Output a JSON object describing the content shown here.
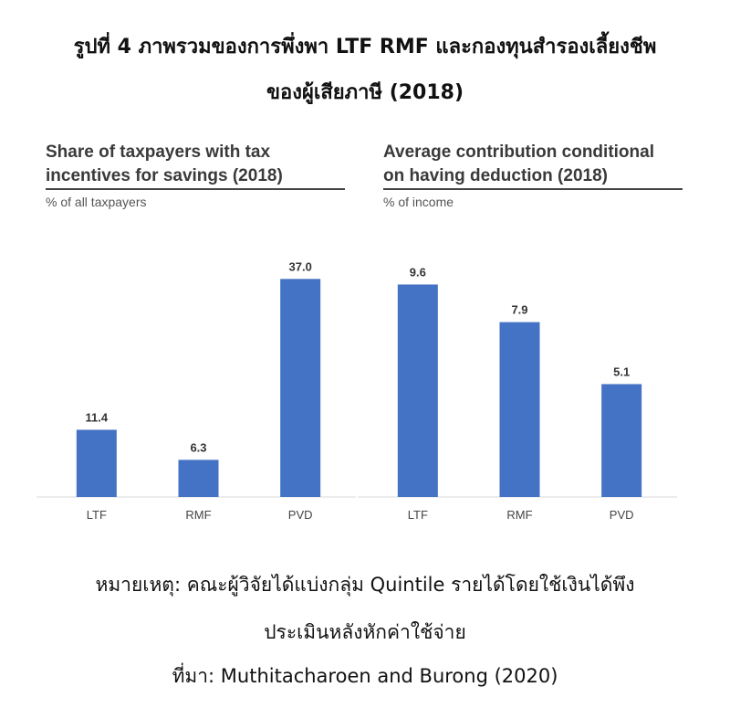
{
  "figure": {
    "title_line1": "รูปที่ 4 ภาพรวมของการพึ่งพา LTF RMF และกองทุนสำรองเลี้ยงชีพ",
    "title_line2": "ของผู้เสียภาษี (2018)",
    "note_line1": "หมายเหตุ: คณะผู้วิจัยได้แบ่งกลุ่ม Quintile รายได้โดยใช้เงินได้พึง",
    "note_line2": "ประเมินหลังหักค่าใช้จ่าย",
    "source": "ที่มา: Muthitacharoen and Burong (2020)"
  },
  "colors": {
    "bar": "#4472c4"
  },
  "chart_data": [
    {
      "type": "bar",
      "title_line1": "Share of taxpayers with tax",
      "title_line2": "incentives for savings (2018)",
      "subtitle": "% of all taxpayers",
      "categories": [
        "LTF",
        "RMF",
        "PVD"
      ],
      "values": [
        11.4,
        6.3,
        37.0
      ],
      "value_labels": [
        "11.4",
        "6.3",
        "37.0"
      ],
      "ylim": [
        0,
        40
      ],
      "grid": false
    },
    {
      "type": "bar",
      "title_line1": "Average contribution conditional",
      "title_line2": "on having deduction (2018)",
      "subtitle": "% of income",
      "categories": [
        "LTF",
        "RMF",
        "PVD"
      ],
      "values": [
        9.6,
        7.9,
        5.1
      ],
      "value_labels": [
        "9.6",
        "7.9",
        "5.1"
      ],
      "ylim": [
        0,
        10.65
      ],
      "grid": false
    }
  ]
}
